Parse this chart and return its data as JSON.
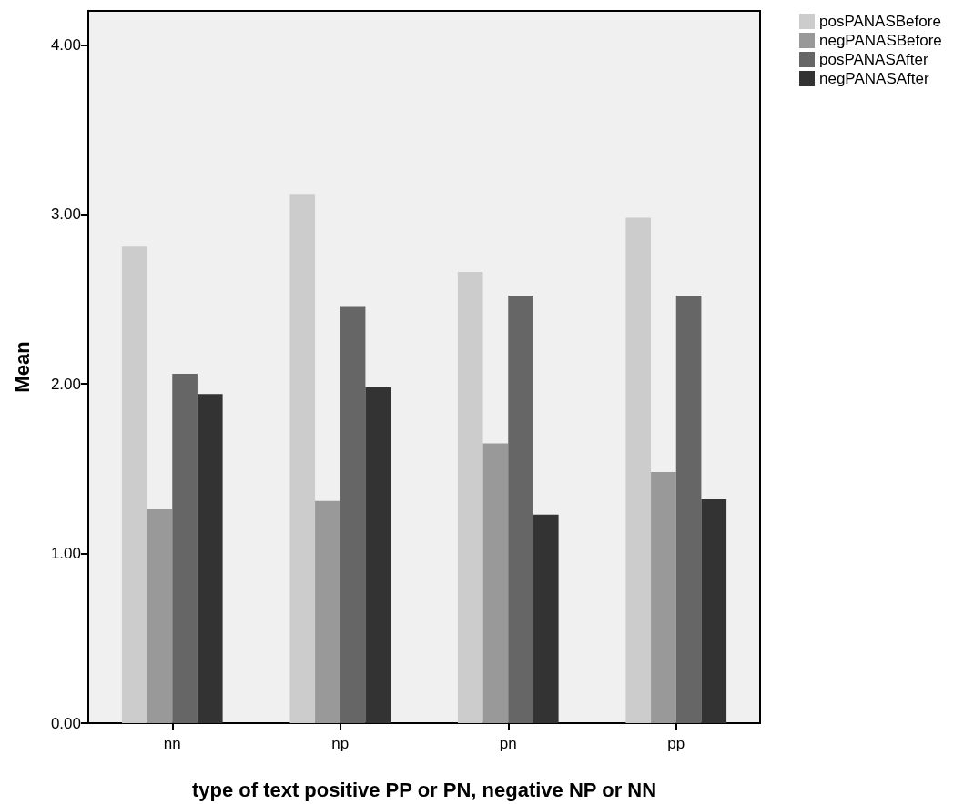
{
  "chart_data": {
    "type": "bar",
    "xlabel": "type of text positive PP or PN, negative NP or NN",
    "ylabel": "Mean",
    "categories": [
      "nn",
      "np",
      "pn",
      "pp"
    ],
    "series": [
      {
        "name": "posPANASBefore",
        "color": "#cccccc",
        "values": [
          2.81,
          3.12,
          2.66,
          2.98
        ]
      },
      {
        "name": "negPANASBefore",
        "color": "#999999",
        "values": [
          1.26,
          1.31,
          1.65,
          1.48
        ]
      },
      {
        "name": "posPANASAfter",
        "color": "#666666",
        "values": [
          2.06,
          2.46,
          2.52,
          2.52
        ]
      },
      {
        "name": "negPANASAfter",
        "color": "#333333",
        "values": [
          1.94,
          1.98,
          1.23,
          1.32
        ]
      }
    ],
    "ylim": [
      0,
      4.2
    ],
    "yticks": [
      {
        "value": 0,
        "label": "0.00"
      },
      {
        "value": 1,
        "label": "1.00"
      },
      {
        "value": 2,
        "label": "2.00"
      },
      {
        "value": 3,
        "label": "3.00"
      },
      {
        "value": 4,
        "label": "4.00"
      }
    ],
    "grid": false,
    "legend": "top right"
  }
}
